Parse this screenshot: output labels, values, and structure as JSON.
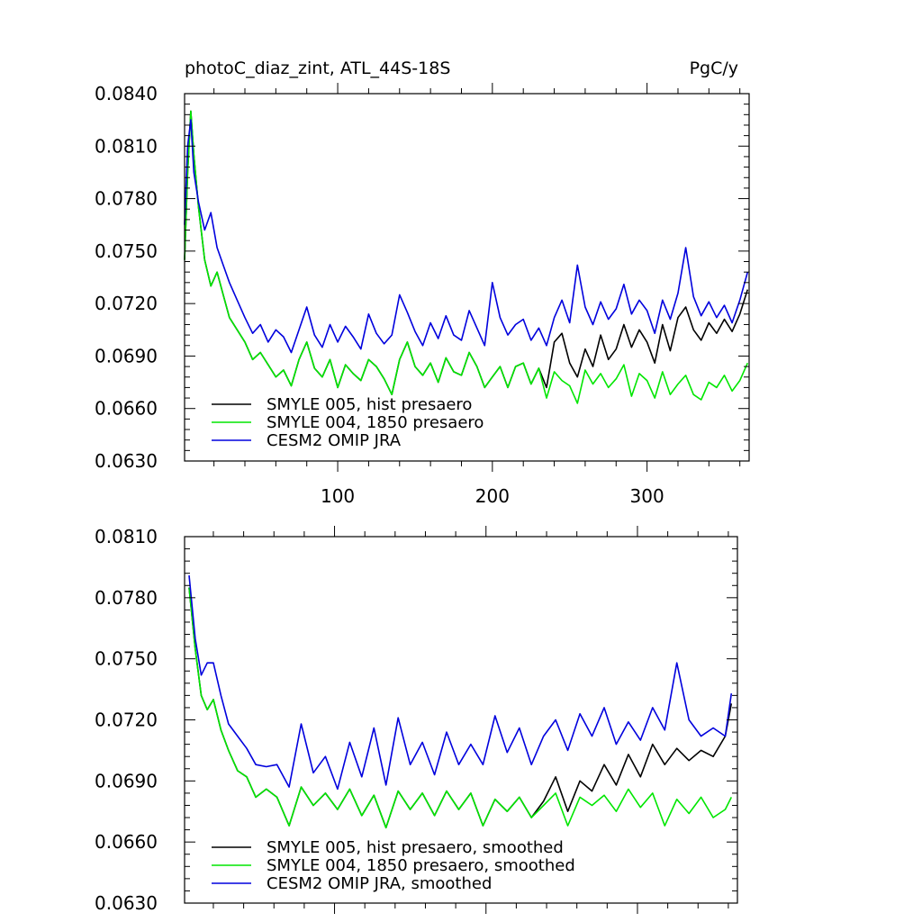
{
  "chart_data": [
    {
      "type": "line",
      "title": "photoC_diaz_zint, ATL_44S-18S",
      "units": "PgC/y",
      "xlim": [
        1,
        366
      ],
      "ylim": [
        0.063,
        0.084
      ],
      "xticks": [
        100,
        200,
        300
      ],
      "xtick_labels": [
        "100",
        "200",
        "300"
      ],
      "yticks": [
        0.063,
        0.066,
        0.069,
        0.072,
        0.075,
        0.078,
        0.081,
        0.084
      ],
      "ytick_labels": [
        "0.0630",
        "0.0660",
        "0.0690",
        "0.0720",
        "0.0750",
        "0.0780",
        "0.0810",
        "0.0840"
      ],
      "legend_position": "bottom-left",
      "series": [
        {
          "name": "SMYLE 005, hist presaero",
          "color": "#000000",
          "x": [
            1,
            3,
            5,
            7,
            10,
            14,
            18,
            22,
            26,
            30,
            35,
            40,
            45,
            50,
            55,
            60,
            65,
            70,
            75,
            80,
            85,
            90,
            95,
            100,
            105,
            110,
            115,
            120,
            125,
            130,
            135,
            140,
            145,
            150,
            155,
            160,
            165,
            170,
            175,
            180,
            185,
            190,
            195,
            200,
            205,
            210,
            215,
            220,
            225,
            230,
            235,
            240,
            245,
            250,
            255,
            260,
            265,
            270,
            275,
            280,
            285,
            290,
            295,
            300,
            305,
            310,
            315,
            320,
            325,
            330,
            335,
            340,
            345,
            350,
            355,
            360,
            365
          ],
          "y": [
            0.0745,
            0.0795,
            0.083,
            0.0805,
            0.0775,
            0.0745,
            0.073,
            0.0738,
            0.0725,
            0.0712,
            0.0705,
            0.0698,
            0.0688,
            0.0692,
            0.0685,
            0.0678,
            0.0682,
            0.0673,
            0.0688,
            0.0698,
            0.0683,
            0.0678,
            0.0688,
            0.0672,
            0.0685,
            0.068,
            0.0676,
            0.0688,
            0.0684,
            0.0677,
            0.0668,
            0.0688,
            0.0698,
            0.0684,
            0.0679,
            0.0686,
            0.0675,
            0.0689,
            0.0681,
            0.0679,
            0.0692,
            0.0684,
            0.0672,
            0.0678,
            0.0684,
            0.0672,
            0.0684,
            0.0686,
            0.0674,
            0.0683,
            0.0672,
            0.0698,
            0.0703,
            0.0686,
            0.0678,
            0.0694,
            0.0684,
            0.0702,
            0.0688,
            0.0694,
            0.0708,
            0.0695,
            0.0705,
            0.0698,
            0.0686,
            0.0708,
            0.0693,
            0.0712,
            0.0718,
            0.0705,
            0.0699,
            0.0709,
            0.0703,
            0.0711,
            0.0704,
            0.0714,
            0.0728
          ]
        },
        {
          "name": "SMYLE 004, 1850 presaero",
          "color": "#00e600",
          "x": [
            1,
            3,
            5,
            7,
            10,
            14,
            18,
            22,
            26,
            30,
            35,
            40,
            45,
            50,
            55,
            60,
            65,
            70,
            75,
            80,
            85,
            90,
            95,
            100,
            105,
            110,
            115,
            120,
            125,
            130,
            135,
            140,
            145,
            150,
            155,
            160,
            165,
            170,
            175,
            180,
            185,
            190,
            195,
            200,
            205,
            210,
            215,
            220,
            225,
            230,
            235,
            240,
            245,
            250,
            255,
            260,
            265,
            270,
            275,
            280,
            285,
            290,
            295,
            300,
            305,
            310,
            315,
            320,
            325,
            330,
            335,
            340,
            345,
            350,
            355,
            360,
            365
          ],
          "y": [
            0.0745,
            0.0795,
            0.083,
            0.0805,
            0.0775,
            0.0745,
            0.073,
            0.0738,
            0.0725,
            0.0712,
            0.0705,
            0.0698,
            0.0688,
            0.0692,
            0.0685,
            0.0678,
            0.0682,
            0.0673,
            0.0688,
            0.0698,
            0.0683,
            0.0678,
            0.0688,
            0.0672,
            0.0685,
            0.068,
            0.0676,
            0.0688,
            0.0684,
            0.0677,
            0.0668,
            0.0688,
            0.0698,
            0.0684,
            0.0679,
            0.0686,
            0.0675,
            0.0689,
            0.0681,
            0.0679,
            0.0692,
            0.0684,
            0.0672,
            0.0678,
            0.0684,
            0.0672,
            0.0684,
            0.0686,
            0.0674,
            0.0683,
            0.0666,
            0.0681,
            0.0676,
            0.0673,
            0.0663,
            0.0682,
            0.0674,
            0.068,
            0.0672,
            0.0677,
            0.0685,
            0.0667,
            0.068,
            0.0676,
            0.0666,
            0.0681,
            0.0668,
            0.0674,
            0.0679,
            0.0668,
            0.0665,
            0.0675,
            0.0672,
            0.0679,
            0.067,
            0.0676,
            0.0686
          ]
        },
        {
          "name": "CESM2 OMIP JRA",
          "color": "#0000dd",
          "x": [
            1,
            3,
            5,
            7,
            10,
            14,
            18,
            22,
            26,
            30,
            35,
            40,
            45,
            50,
            55,
            60,
            65,
            70,
            75,
            80,
            85,
            90,
            95,
            100,
            105,
            110,
            115,
            120,
            125,
            130,
            135,
            140,
            145,
            150,
            155,
            160,
            165,
            170,
            175,
            180,
            185,
            190,
            195,
            200,
            205,
            210,
            215,
            220,
            225,
            230,
            235,
            240,
            245,
            250,
            255,
            260,
            265,
            270,
            275,
            280,
            285,
            290,
            295,
            300,
            305,
            310,
            315,
            320,
            325,
            330,
            335,
            340,
            345,
            350,
            355,
            360,
            365
          ],
          "y": [
            0.0765,
            0.081,
            0.0825,
            0.0795,
            0.0778,
            0.0762,
            0.0772,
            0.0752,
            0.0742,
            0.0732,
            0.0722,
            0.0712,
            0.0703,
            0.0708,
            0.0698,
            0.0705,
            0.0701,
            0.0692,
            0.0705,
            0.0718,
            0.0702,
            0.0695,
            0.0708,
            0.0698,
            0.0707,
            0.0701,
            0.0694,
            0.0714,
            0.0703,
            0.0697,
            0.0702,
            0.0725,
            0.0715,
            0.0704,
            0.0696,
            0.0709,
            0.07,
            0.0713,
            0.0702,
            0.0699,
            0.0716,
            0.0706,
            0.0696,
            0.0732,
            0.0712,
            0.0702,
            0.0708,
            0.0711,
            0.0699,
            0.0706,
            0.0696,
            0.0712,
            0.0722,
            0.0709,
            0.0742,
            0.0718,
            0.0708,
            0.0721,
            0.0711,
            0.0717,
            0.0731,
            0.0714,
            0.0722,
            0.0716,
            0.0703,
            0.0722,
            0.0711,
            0.0726,
            0.0752,
            0.0724,
            0.0713,
            0.0721,
            0.0712,
            0.0719,
            0.0709,
            0.0722,
            0.0738
          ]
        }
      ]
    },
    {
      "type": "line",
      "xlim": [
        1,
        366
      ],
      "ylim": [
        0.063,
        0.081
      ],
      "yticks": [
        0.063,
        0.066,
        0.069,
        0.072,
        0.075,
        0.078,
        0.081
      ],
      "ytick_labels": [
        "0.0630",
        "0.0660",
        "0.0690",
        "0.0720",
        "0.0750",
        "0.0780",
        "0.0810"
      ],
      "legend_position": "bottom-left",
      "series": [
        {
          "name": "SMYLE 005, hist presaero, smoothed",
          "color": "#000000",
          "x": [
            4,
            8,
            12,
            16,
            20,
            25,
            30,
            36,
            42,
            48,
            55,
            62,
            70,
            78,
            86,
            94,
            102,
            110,
            118,
            126,
            134,
            142,
            150,
            158,
            166,
            174,
            182,
            190,
            198,
            206,
            214,
            222,
            230,
            238,
            246,
            254,
            262,
            270,
            278,
            286,
            294,
            302,
            310,
            318,
            326,
            334,
            342,
            350,
            358,
            362
          ],
          "y": [
            0.0785,
            0.0755,
            0.0732,
            0.0725,
            0.073,
            0.0715,
            0.0705,
            0.0695,
            0.0692,
            0.0682,
            0.0686,
            0.0682,
            0.0668,
            0.0687,
            0.0678,
            0.0684,
            0.0676,
            0.0686,
            0.0673,
            0.0683,
            0.0667,
            0.0685,
            0.0676,
            0.0684,
            0.0673,
            0.0685,
            0.0676,
            0.0684,
            0.0668,
            0.0681,
            0.0675,
            0.0682,
            0.0672,
            0.068,
            0.0692,
            0.0675,
            0.069,
            0.0685,
            0.0698,
            0.0688,
            0.0703,
            0.0692,
            0.0708,
            0.0698,
            0.0706,
            0.07,
            0.0705,
            0.0702,
            0.0712,
            0.0728
          ]
        },
        {
          "name": "SMYLE 004, 1850 presaero, smoothed",
          "color": "#00e600",
          "x": [
            4,
            8,
            12,
            16,
            20,
            25,
            30,
            36,
            42,
            48,
            55,
            62,
            70,
            78,
            86,
            94,
            102,
            110,
            118,
            126,
            134,
            142,
            150,
            158,
            166,
            174,
            182,
            190,
            198,
            206,
            214,
            222,
            230,
            238,
            246,
            254,
            262,
            270,
            278,
            286,
            294,
            302,
            310,
            318,
            326,
            334,
            342,
            350,
            358,
            362
          ],
          "y": [
            0.0785,
            0.0755,
            0.0732,
            0.0725,
            0.073,
            0.0715,
            0.0705,
            0.0695,
            0.0692,
            0.0682,
            0.0686,
            0.0682,
            0.0668,
            0.0687,
            0.0678,
            0.0684,
            0.0676,
            0.0686,
            0.0673,
            0.0683,
            0.0667,
            0.0685,
            0.0676,
            0.0684,
            0.0673,
            0.0685,
            0.0676,
            0.0684,
            0.0668,
            0.0681,
            0.0675,
            0.0682,
            0.0672,
            0.0678,
            0.0684,
            0.0668,
            0.0682,
            0.0678,
            0.0683,
            0.0675,
            0.0686,
            0.0677,
            0.0684,
            0.0668,
            0.0681,
            0.0674,
            0.0682,
            0.0672,
            0.0676,
            0.0682
          ]
        },
        {
          "name": "CESM2 OMIP JRA, smoothed",
          "color": "#0000dd",
          "x": [
            4,
            8,
            12,
            16,
            20,
            25,
            30,
            36,
            42,
            48,
            55,
            62,
            70,
            78,
            86,
            94,
            102,
            110,
            118,
            126,
            134,
            142,
            150,
            158,
            166,
            174,
            182,
            190,
            198,
            206,
            214,
            222,
            230,
            238,
            246,
            254,
            262,
            270,
            278,
            286,
            294,
            302,
            310,
            318,
            326,
            334,
            342,
            350,
            358,
            362
          ],
          "y": [
            0.0791,
            0.076,
            0.0742,
            0.0748,
            0.0748,
            0.0732,
            0.0718,
            0.0712,
            0.0706,
            0.0698,
            0.0697,
            0.0698,
            0.0687,
            0.0718,
            0.0694,
            0.0702,
            0.0686,
            0.0709,
            0.0692,
            0.0716,
            0.0688,
            0.0721,
            0.0698,
            0.0709,
            0.0693,
            0.0714,
            0.0698,
            0.0708,
            0.0698,
            0.0722,
            0.0704,
            0.0716,
            0.0698,
            0.0712,
            0.072,
            0.0705,
            0.0723,
            0.0712,
            0.0726,
            0.0708,
            0.0719,
            0.071,
            0.0726,
            0.0715,
            0.0748,
            0.072,
            0.0712,
            0.0716,
            0.0712,
            0.0733
          ]
        }
      ]
    }
  ]
}
